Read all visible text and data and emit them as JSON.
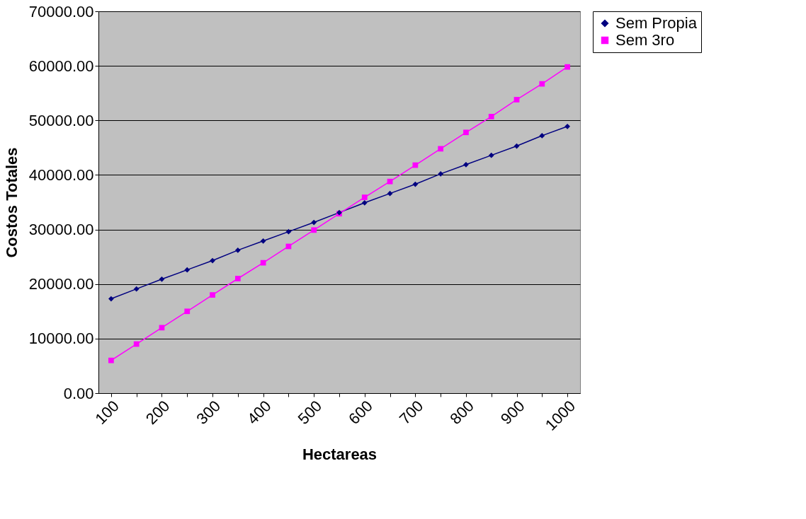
{
  "chart_data": {
    "type": "line",
    "xlabel": "Hectareas",
    "ylabel": "Costos Totales",
    "categories": [
      "100",
      null,
      "200",
      null,
      "300",
      null,
      "400",
      null,
      "500",
      null,
      "600",
      null,
      "700",
      null,
      "800",
      null,
      "900",
      null,
      "1000"
    ],
    "series": [
      {
        "name": "Sem Propia",
        "color": "#000080",
        "marker": "diamond",
        "values": [
          17300,
          19100,
          20900,
          22600,
          24300,
          26200,
          27900,
          29600,
          31300,
          33100,
          34900,
          36600,
          38300,
          40200,
          41900,
          43600,
          45300,
          47200,
          48900
        ]
      },
      {
        "name": "Sem 3ro",
        "color": "#ff00ff",
        "marker": "square",
        "values": [
          6000,
          9000,
          12000,
          15000,
          18000,
          21000,
          23900,
          26900,
          29900,
          32900,
          35900,
          38800,
          41800,
          44800,
          47800,
          50700,
          53800,
          56700,
          59800
        ]
      }
    ],
    "ylim": [
      0,
      70000
    ],
    "yticks": [
      {
        "value": 0,
        "label": "0.00"
      },
      {
        "value": 10000,
        "label": "10000.00"
      },
      {
        "value": 20000,
        "label": "20000.00"
      },
      {
        "value": 30000,
        "label": "30000.00"
      },
      {
        "value": 40000,
        "label": "40000.00"
      },
      {
        "value": 50000,
        "label": "50000.00"
      },
      {
        "value": 60000,
        "label": "60000.00"
      },
      {
        "value": 70000,
        "label": "70000.00"
      }
    ],
    "grid": "y",
    "legend": "right",
    "line_style": "solid"
  }
}
